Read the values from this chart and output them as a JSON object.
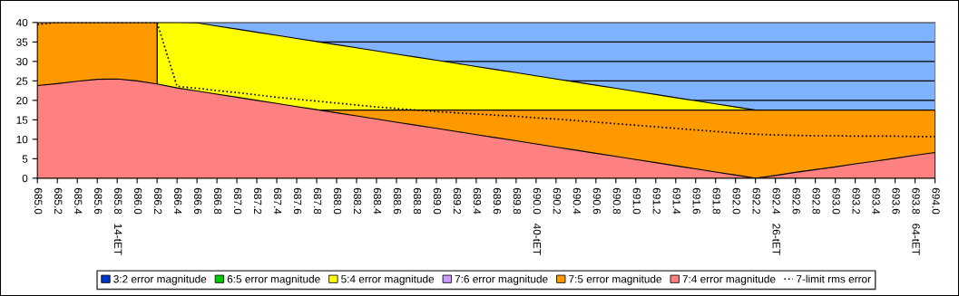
{
  "chart_data": {
    "type": "area",
    "categories": [
      "685.0",
      "685.2",
      "685.4",
      "685.6",
      "685.8   14-tET",
      "686.0",
      "686.2",
      "686.4",
      "686.6",
      "686.8",
      "687.0",
      "687.2",
      "687.4",
      "687.6",
      "687.8",
      "688.0",
      "688.2",
      "688.4",
      "688.6",
      "688.8",
      "689.0",
      "689.2",
      "689.4",
      "689.6",
      "689.8",
      "690.0   40-tET",
      "690.2",
      "690.4",
      "690.6",
      "690.8",
      "691.0",
      "691.2",
      "691.4",
      "691.6",
      "691.8",
      "692.0",
      "692.2",
      "692.4   26-tET",
      "692.6",
      "692.8",
      "693.0",
      "693.2",
      "693.4",
      "693.6",
      "693.8   64-tET",
      "694.0"
    ],
    "ylim": [
      0,
      40
    ],
    "yticks": [
      0,
      5,
      10,
      15,
      20,
      25,
      30,
      35,
      40
    ],
    "grid": "y",
    "legend": "bottom",
    "bands": [
      {
        "axis": "y",
        "from": 17.5,
        "to": 40,
        "color": "#7fb3ff"
      }
    ],
    "series": [
      {
        "name": "3:2 error magnitude",
        "color": "#0033cc",
        "values": [
          null,
          null,
          null,
          null,
          null,
          null,
          null,
          null,
          null,
          null,
          null,
          null,
          null,
          null,
          null,
          null,
          null,
          null,
          null,
          null,
          null,
          null,
          null,
          null,
          null,
          null,
          null,
          null,
          null,
          null,
          null,
          null,
          null,
          null,
          null,
          null,
          null,
          null,
          null,
          null,
          null,
          null,
          null,
          null,
          null,
          null
        ]
      },
      {
        "name": "6:5 error magnitude",
        "color": "#00cc00",
        "values": [
          null,
          null,
          null,
          null,
          null,
          null,
          null,
          null,
          null,
          null,
          null,
          null,
          null,
          null,
          null,
          null,
          null,
          null,
          null,
          null,
          null,
          null,
          null,
          null,
          null,
          null,
          null,
          null,
          null,
          null,
          null,
          null,
          null,
          null,
          null,
          null,
          null,
          null,
          null,
          null,
          null,
          null,
          null,
          null,
          null,
          null
        ]
      },
      {
        "name": "5:4 error magnitude",
        "color": "#ffff00",
        "values": [
          null,
          null,
          null,
          null,
          null,
          null,
          40,
          40,
          39.9,
          39.1,
          38.3,
          37.5,
          36.7,
          35.9,
          35.1,
          34.3,
          33.5,
          32.7,
          31.9,
          31.1,
          30.3,
          29.5,
          28.7,
          27.9,
          27.1,
          26.3,
          25.5,
          24.7,
          23.9,
          23.1,
          22.3,
          21.5,
          20.7,
          19.9,
          19.1,
          18.3,
          17.5,
          null,
          null,
          null,
          null,
          null,
          null,
          null,
          null,
          null
        ]
      },
      {
        "name": "7:6 error magnitude",
        "color": "#cc99ff",
        "values": [
          null,
          null,
          null,
          null,
          null,
          null,
          null,
          null,
          null,
          null,
          null,
          null,
          null,
          null,
          null,
          null,
          null,
          null,
          null,
          null,
          null,
          null,
          null,
          null,
          null,
          null,
          null,
          null,
          null,
          null,
          null,
          null,
          null,
          null,
          null,
          null,
          null,
          null,
          null,
          null,
          null,
          null,
          null,
          null,
          null,
          null
        ]
      },
      {
        "name": "7:5 error magnitude",
        "color": "#ff9900",
        "values": [
          40,
          40,
          40,
          40,
          40,
          40,
          40,
          null,
          null,
          null,
          null,
          null,
          null,
          null,
          17.5,
          17.5,
          17.5,
          17.5,
          17.5,
          17.5,
          17.5,
          17.5,
          17.5,
          17.5,
          17.5,
          17.5,
          17.5,
          17.5,
          17.5,
          17.5,
          17.5,
          17.5,
          17.5,
          17.5,
          17.5,
          17.5,
          17.5,
          17.5,
          17.5,
          17.5,
          17.5,
          17.5,
          17.5,
          17.5,
          17.5,
          17.5
        ]
      },
      {
        "name": "7:4 error magnitude",
        "color": "#ff8080",
        "values": [
          23.8,
          24.3,
          24.9,
          25.4,
          25.5,
          25.0,
          24.2,
          23.2,
          22.4,
          21.6,
          20.8,
          20.0,
          19.2,
          18.4,
          17.6,
          16.8,
          16.0,
          15.2,
          14.4,
          13.6,
          12.8,
          12.0,
          11.2,
          10.4,
          9.6,
          8.8,
          8.0,
          7.2,
          6.4,
          5.6,
          4.8,
          4.0,
          3.2,
          2.4,
          1.6,
          0.8,
          0,
          0.7,
          1.5,
          2.2,
          2.9,
          3.7,
          4.4,
          5.1,
          5.9,
          6.6
        ]
      },
      {
        "name": "7-limit rms error",
        "type": "line",
        "color": "#000000",
        "line_style": "dotted",
        "values": [
          39.5,
          40,
          40,
          40,
          40,
          40,
          40,
          23.6,
          23.1,
          22.5,
          22.0,
          21.4,
          20.8,
          20.3,
          19.8,
          19.3,
          18.8,
          18.3,
          17.9,
          17.5,
          17.1,
          16.8,
          16.5,
          16.2,
          15.9,
          15.5,
          15.2,
          14.8,
          14.4,
          14.0,
          13.6,
          13.2,
          12.8,
          12.4,
          12.0,
          11.6,
          11.3,
          11.1,
          11.0,
          10.9,
          10.9,
          10.8,
          10.8,
          10.8,
          10.7,
          10.7
        ]
      }
    ]
  }
}
